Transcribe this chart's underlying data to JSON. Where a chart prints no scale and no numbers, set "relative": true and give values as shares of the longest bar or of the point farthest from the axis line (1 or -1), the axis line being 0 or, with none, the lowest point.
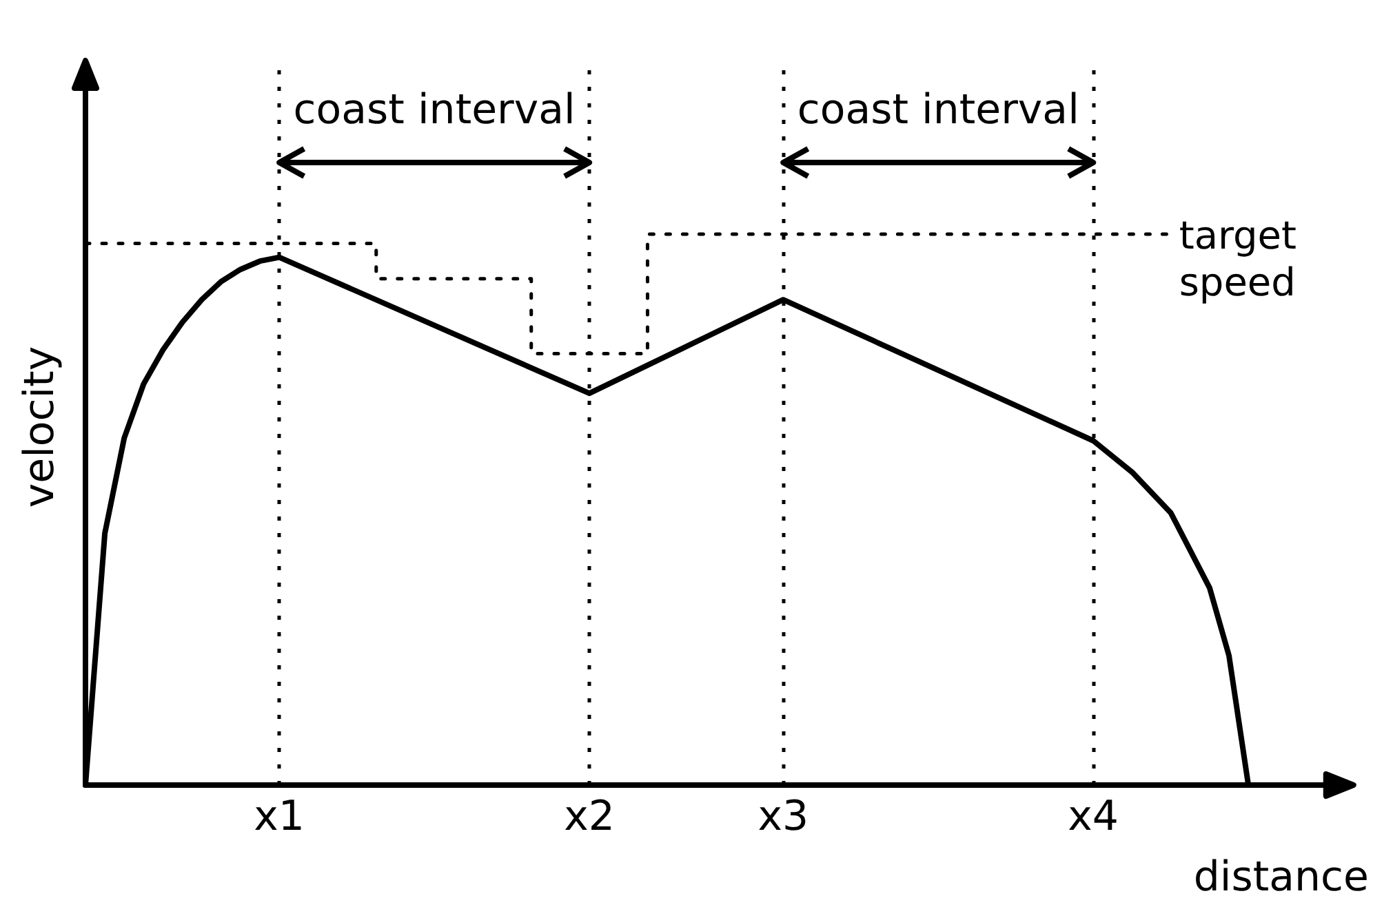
{
  "chart_data": {
    "type": "line",
    "xlabel": "distance",
    "ylabel": "velocity",
    "relative": true,
    "categories": [
      null,
      null,
      null,
      null,
      null,
      null,
      null,
      null,
      null,
      null,
      "x1",
      null,
      null,
      null,
      null,
      null,
      null,
      null,
      null,
      null,
      null,
      null,
      null,
      null,
      null,
      null,
      "x2",
      null,
      null,
      null,
      null,
      null,
      null,
      null,
      null,
      null,
      "x3",
      null,
      null,
      null,
      null,
      null,
      null,
      null,
      null,
      null,
      null,
      null,
      null,
      null,
      null,
      null,
      "x4",
      null,
      null,
      null,
      null,
      null,
      null,
      null,
      null,
      null,
      null,
      null,
      null,
      null
    ],
    "series": [
      {
        "color": "#000000",
        "line_style": "solid",
        "values": [
          0,
          0.457,
          0.63,
          0.728,
          0.79,
          0.84,
          0.881,
          0.914,
          0.936,
          0.951,
          0.958,
          null,
          null,
          null,
          null,
          null,
          null,
          null,
          null,
          null,
          null,
          null,
          null,
          null,
          null,
          null,
          0.711,
          null,
          null,
          null,
          null,
          null,
          null,
          null,
          null,
          null,
          0.881,
          null,
          null,
          null,
          null,
          null,
          null,
          null,
          null,
          null,
          null,
          null,
          null,
          null,
          null,
          null,
          0.625,
          null,
          0.568,
          null,
          0.494,
          null,
          0.358,
          0.235,
          0,
          null,
          null,
          null,
          null,
          null
        ]
      },
      {
        "name": "target speed",
        "type": "step",
        "color": "#000000",
        "line_style": "dotted",
        "values": [
          0.983,
          null,
          null,
          null,
          null,
          null,
          null,
          null,
          null,
          null,
          null,
          null,
          null,
          null,
          null,
          0.919,
          null,
          null,
          null,
          null,
          null,
          null,
          null,
          0.783,
          null,
          null,
          null,
          null,
          null,
          1,
          null,
          null,
          null,
          null,
          null,
          null,
          null,
          null,
          null,
          null,
          null,
          null,
          null,
          null,
          null,
          null,
          null,
          null,
          null,
          null,
          null,
          null,
          null,
          null,
          null,
          null,
          1,
          null,
          null,
          null,
          null,
          null,
          null,
          null,
          null,
          null
        ]
      }
    ],
    "ref_lines": [
      {
        "axis": "x",
        "value": "x1",
        "line_style": "dotted"
      },
      {
        "axis": "x",
        "value": "x2",
        "line_style": "dotted"
      },
      {
        "axis": "x",
        "value": "x3",
        "line_style": "dotted"
      },
      {
        "axis": "x",
        "value": "x4",
        "line_style": "dotted"
      }
    ],
    "annotations": [
      "coast interval",
      "coast interval"
    ],
    "marker": "none",
    "grid": false,
    "legend": false
  }
}
